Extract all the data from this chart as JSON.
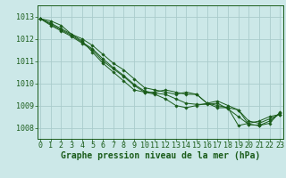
{
  "background_color": "#cce8e8",
  "grid_color": "#aacccc",
  "line_color": "#1a5c1a",
  "marker_color": "#1a5c1a",
  "xlabel": "Graphe pression niveau de la mer (hPa)",
  "xlabel_fontsize": 7,
  "tick_fontsize": 6,
  "xlim_min": -0.3,
  "xlim_max": 23.3,
  "ylim": [
    1007.5,
    1013.5
  ],
  "yticks": [
    1008,
    1009,
    1010,
    1011,
    1012,
    1013
  ],
  "xticks": [
    0,
    1,
    2,
    3,
    4,
    5,
    6,
    7,
    8,
    9,
    10,
    11,
    12,
    13,
    14,
    15,
    16,
    17,
    18,
    19,
    20,
    21,
    22,
    23
  ],
  "series": [
    [
      1012.9,
      1012.8,
      1012.6,
      1012.2,
      1011.9,
      1011.4,
      1010.9,
      1010.5,
      1010.1,
      1009.7,
      1009.6,
      1009.6,
      1009.7,
      1009.6,
      1009.5,
      1009.5,
      1009.1,
      1008.9,
      1008.9,
      1008.1,
      1008.2,
      1008.3,
      1008.5,
      1008.6
    ],
    [
      1012.9,
      1012.7,
      1012.45,
      1012.2,
      1012.0,
      1011.7,
      1011.3,
      1010.9,
      1010.6,
      1010.2,
      1009.8,
      1009.7,
      1009.6,
      1009.5,
      1009.6,
      1009.5,
      1009.1,
      1009.0,
      1008.9,
      1008.8,
      1008.15,
      1008.1,
      1008.2,
      1008.7
    ],
    [
      1012.9,
      1012.65,
      1012.4,
      1012.15,
      1011.85,
      1011.55,
      1011.1,
      1010.7,
      1010.35,
      1009.95,
      1009.65,
      1009.55,
      1009.5,
      1009.3,
      1009.1,
      1009.05,
      1009.05,
      1009.1,
      1008.85,
      1008.5,
      1008.15,
      1008.1,
      1008.3,
      1008.65
    ],
    [
      1012.9,
      1012.6,
      1012.35,
      1012.1,
      1011.8,
      1011.5,
      1011.0,
      1010.65,
      1010.3,
      1009.9,
      1009.6,
      1009.5,
      1009.3,
      1009.0,
      1008.9,
      1009.0,
      1009.1,
      1009.2,
      1009.0,
      1008.8,
      1008.3,
      1008.2,
      1008.4,
      1008.6
    ]
  ]
}
